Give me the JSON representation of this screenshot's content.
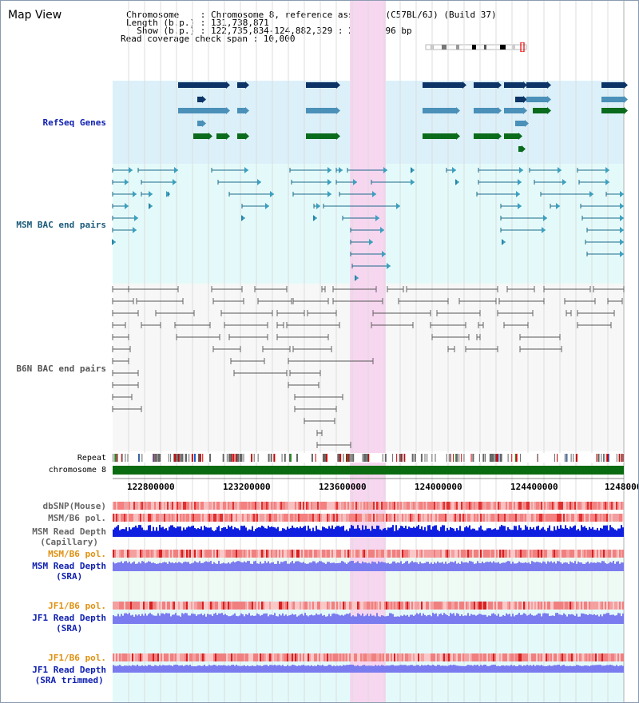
{
  "title": "Map View",
  "info": {
    "chromosome": "Chromosome    : Chromosome 8, reference assembly (C57BL/6J) (Build 37)",
    "length": "Length (b.p.) : 131,738,871",
    "show": "  Show (b.p.) : 122,735,834-124,882,329 : 2,146,496 bp",
    "coverage": "Read coverage check span : 10,000"
  },
  "tracks": {
    "refseq": "RefSeq Genes",
    "msm_bac": "MSM BAC end pairs",
    "b6n_bac": "B6N BAC end pairs",
    "repeat": "Repeat",
    "chromosome": "chromosome 8",
    "dbsnp": "dbSNP(Mouse)",
    "msm_b6_pol_1": "MSM/B6 pol.",
    "msm_depth_cap": "MSM Read Depth\n(Capillary)",
    "msm_b6_pol_2": "MSM/B6 pol.",
    "msm_depth_sra": "MSM Read Depth\n(SRA)",
    "jf1_b6_pol_1": "JF1/B6 pol.",
    "jf1_depth_sra": "JF1 Read Depth\n(SRA)",
    "jf1_b6_pol_2": "JF1/B6 pol.",
    "jf1_depth_trim": "JF1 Read Depth\n(SRA trimmed)"
  },
  "axis": {
    "ticks": [
      "122800000",
      "123200000",
      "123600000",
      "124000000",
      "124400000",
      "1248000"
    ]
  },
  "colors": {
    "highlight": "#f7d6f0",
    "refseq_bg": "#dcf0fa",
    "bac_bg": "#e4fafa",
    "gene_dark": "#0d3466",
    "gene_teal": "#4a90b8",
    "gene_green": "#0a6b1c",
    "chrom_green": "#0a6b10",
    "depth_blue": "#1020e0",
    "depth_light": "#7b7bf0",
    "label_blue": "#1020b0",
    "label_orange": "#e09010",
    "label_teal": "#1a5a7a"
  }
}
